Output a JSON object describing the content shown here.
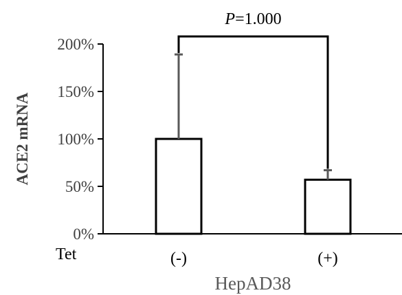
{
  "chart_data": {
    "type": "bar",
    "categories": [
      "(-)",
      "(+)"
    ],
    "values": [
      100,
      57
    ],
    "errors_upper": [
      89,
      10
    ],
    "ylim": [
      0,
      200
    ],
    "yticks": [
      0,
      50,
      100,
      150,
      200
    ],
    "ytick_labels": [
      "0%",
      "50%",
      "100%",
      "150%",
      "200%"
    ],
    "ylabel": "ACE2 mRNA",
    "row_label": "Tet",
    "group_label": "HepAD38",
    "annotation": {
      "p_symbol": "P",
      "p_value": "=1.000"
    },
    "grid": false,
    "bar_fill": "#ffffff",
    "bar_stroke": "#000000",
    "error_bar_color": "#595959"
  }
}
